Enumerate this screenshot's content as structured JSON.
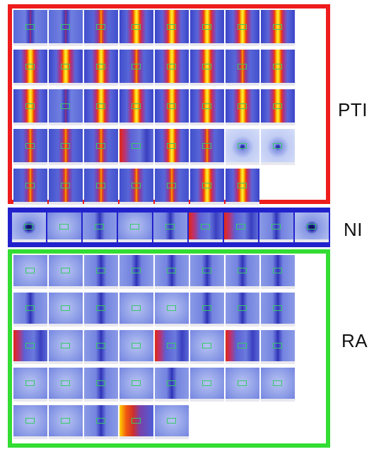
{
  "colors": {
    "background": "#ffffff",
    "pti_border": "#ee1c1c",
    "ni_border": "#2222cc",
    "ra_border": "#33dd33",
    "roi_box": "#39c86a"
  },
  "groups": [
    {
      "id": "pti",
      "label": "PTI",
      "border_color": "#ee1c1c",
      "rows": [
        [
          "vertical-low",
          "vertical-low",
          "vertical-medium",
          "vertical-high",
          "vertical-high",
          "vertical-high",
          "vertical-high",
          "vertical-high"
        ],
        [
          "vertical-high",
          "vertical-high",
          "vertical-high",
          "vertical-medium",
          "vertical-high",
          "vertical-high",
          "vertical-medium",
          "vertical-high"
        ],
        [
          "vertical-high",
          "vertical-low",
          "vertical-high",
          "vertical-high",
          "vertical-high",
          "vertical-high",
          "vertical-high",
          "vertical-high"
        ],
        [
          "vertical-medium",
          "vertical-medium",
          "vertical-medium",
          "edge-red",
          "vertical-high",
          "vertical-medium",
          "spot-pale",
          "spot-pale"
        ],
        [
          "vertical-medium",
          "vertical-medium",
          "vertical-medium",
          "vertical-medium",
          "vertical-medium",
          "vertical-high",
          "vertical-high"
        ]
      ]
    },
    {
      "id": "ni",
      "label": "NI",
      "border_color": "#2222cc",
      "rows": [
        [
          "spot-dark",
          "diffuse",
          "faint-streak",
          "diffuse",
          "faint-streak",
          "edge-red",
          "edge-red",
          "faint-streak",
          "spot-dark"
        ]
      ]
    },
    {
      "id": "ra",
      "label": "RA",
      "border_color": "#33dd33",
      "rows": [
        [
          "diffuse",
          "diffuse",
          "faint-streak",
          "faint-streak",
          "faint-streak",
          "faint-streak",
          "faint-streak",
          "faint-streak"
        ],
        [
          "faint-streak",
          "diffuse",
          "faint-streak",
          "diffuse",
          "diffuse",
          "faint-streak",
          "faint-streak",
          "faint-streak"
        ],
        [
          "edge-red",
          "diffuse",
          "faint-streak",
          "diffuse",
          "edge-red",
          "diffuse",
          "edge-red",
          "faint-streak"
        ],
        [
          "diffuse",
          "diffuse",
          "faint-streak",
          "diffuse",
          "faint-streak",
          "diffuse",
          "diffuse",
          "diffuse"
        ],
        [
          "diffuse",
          "diffuse",
          "faint-streak",
          "edge-red-strong",
          "diffuse"
        ]
      ]
    }
  ]
}
